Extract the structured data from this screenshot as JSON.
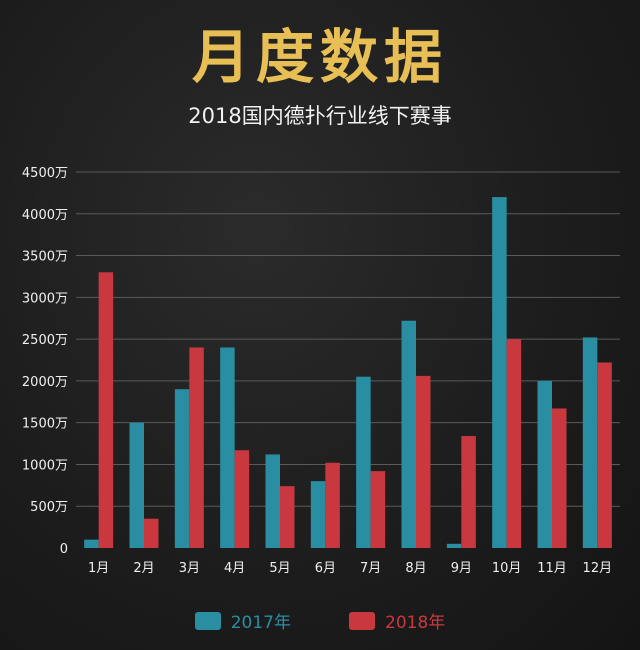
{
  "header": {
    "title": "月度数据",
    "subtitle": "2018国内德扑行业线下赛事"
  },
  "colors": {
    "series_2017": "#2a8ea3",
    "series_2018": "#c9383e",
    "title": "#e8bf55"
  },
  "chart_data": {
    "type": "bar",
    "title": "2018国内德扑行业线下赛事",
    "categories": [
      "1月",
      "2月",
      "3月",
      "4月",
      "5月",
      "6月",
      "7月",
      "8月",
      "9月",
      "10月",
      "11月",
      "12月"
    ],
    "series": [
      {
        "name": "2017年",
        "values": [
          100,
          1500,
          1900,
          2400,
          1120,
          800,
          2050,
          2720,
          50,
          4200,
          2000,
          2520
        ]
      },
      {
        "name": "2018年",
        "values": [
          3300,
          350,
          2400,
          1170,
          740,
          1020,
          920,
          2060,
          1340,
          2500,
          1670,
          2220
        ]
      }
    ],
    "y_ticks": [
      "0",
      "500万",
      "1000万",
      "1500万",
      "2000万",
      "2500万",
      "3000万",
      "3500万",
      "4000万",
      "4500万"
    ],
    "ylim": [
      0,
      4500
    ],
    "grid": true,
    "legend_position": "bottom"
  }
}
